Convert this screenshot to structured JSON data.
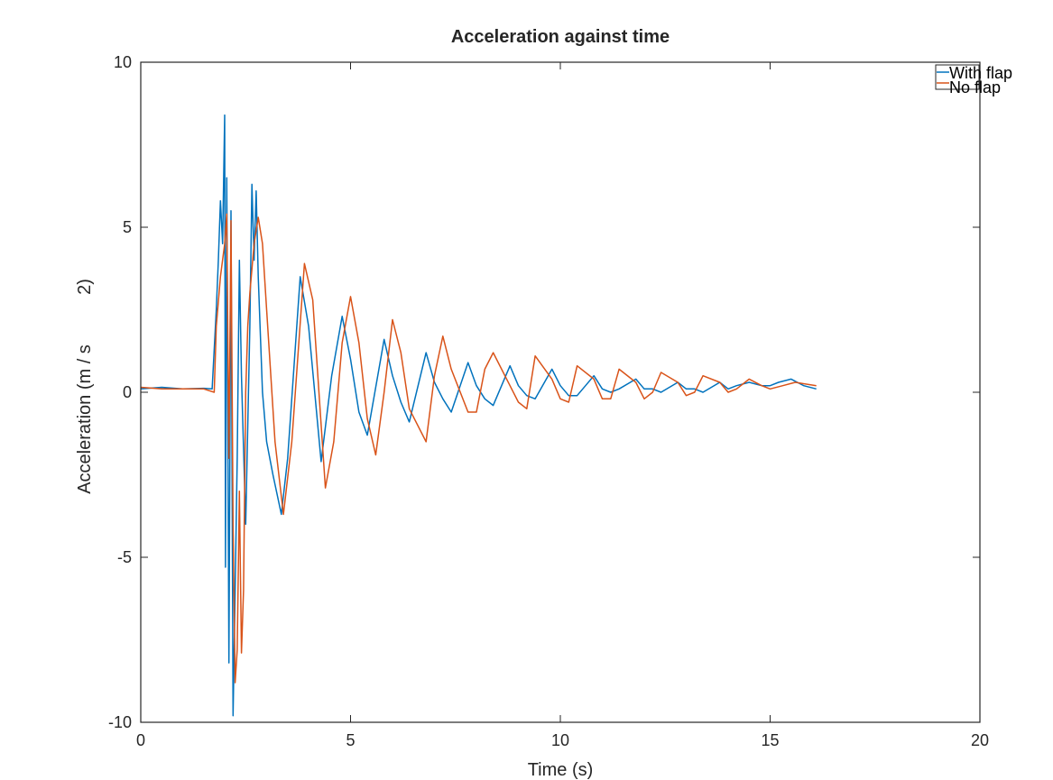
{
  "chart_data": {
    "type": "line",
    "title": "Acceleration against time",
    "xlabel": "Time (s)",
    "ylabel": "Acceleration (m / s",
    "ylabel_sup": "2)",
    "xlim": [
      0,
      20
    ],
    "ylim": [
      -10,
      10
    ],
    "xticks": [
      0,
      5,
      10,
      15,
      20
    ],
    "yticks": [
      -10,
      -5,
      0,
      5,
      10
    ],
    "xtick_labels": [
      "0",
      "5",
      "10",
      "15",
      "20"
    ],
    "ytick_labels": [
      "-10",
      "-5",
      "0",
      "5",
      "10"
    ],
    "grid": false,
    "legend_position": "top-right",
    "series": [
      {
        "name": "With flap",
        "color": "#0072BD",
        "x": [
          0.0,
          0.5,
          1.0,
          1.5,
          1.7,
          1.8,
          1.85,
          1.9,
          1.95,
          2.0,
          2.02,
          2.05,
          2.1,
          2.15,
          2.2,
          2.25,
          2.3,
          2.35,
          2.4,
          2.5,
          2.6,
          2.65,
          2.7,
          2.75,
          2.8,
          2.9,
          3.0,
          3.15,
          3.35,
          3.5,
          3.8,
          4.0,
          4.3,
          4.55,
          4.8,
          5.0,
          5.2,
          5.4,
          5.8,
          6.0,
          6.2,
          6.4,
          6.8,
          7.0,
          7.2,
          7.4,
          7.8,
          8.0,
          8.2,
          8.4,
          8.8,
          9.0,
          9.2,
          9.4,
          9.8,
          10.0,
          10.2,
          10.4,
          10.8,
          11.0,
          11.2,
          11.4,
          11.8,
          12.0,
          12.2,
          12.4,
          12.8,
          13.0,
          13.2,
          13.4,
          13.8,
          14.0,
          14.2,
          14.5,
          14.8,
          15.0,
          15.2,
          15.5,
          15.8,
          16.1
        ],
        "values": [
          0.1,
          0.15,
          0.1,
          0.12,
          0.1,
          2.5,
          4.0,
          5.8,
          4.5,
          8.4,
          -5.3,
          6.5,
          -8.2,
          5.5,
          -9.8,
          -6.0,
          -2.0,
          4.0,
          0.5,
          -4.0,
          2.0,
          6.3,
          4.0,
          6.1,
          3.5,
          0.0,
          -1.5,
          -2.5,
          -3.7,
          -2.0,
          3.5,
          2.0,
          -2.1,
          0.5,
          2.3,
          1.0,
          -0.6,
          -1.3,
          1.6,
          0.5,
          -0.3,
          -0.9,
          1.2,
          0.3,
          -0.2,
          -0.6,
          0.9,
          0.2,
          -0.2,
          -0.4,
          0.8,
          0.2,
          -0.1,
          -0.2,
          0.7,
          0.2,
          -0.1,
          -0.1,
          0.5,
          0.1,
          0.0,
          0.1,
          0.4,
          0.1,
          0.1,
          0.0,
          0.3,
          0.1,
          0.1,
          0.0,
          0.3,
          0.1,
          0.2,
          0.3,
          0.2,
          0.2,
          0.3,
          0.4,
          0.2,
          0.1
        ]
      },
      {
        "name": "No flap",
        "color": "#D95319",
        "x": [
          0.0,
          0.5,
          1.0,
          1.5,
          1.75,
          1.8,
          1.9,
          2.0,
          2.05,
          2.1,
          2.15,
          2.2,
          2.25,
          2.3,
          2.35,
          2.4,
          2.45,
          2.5,
          2.55,
          2.6,
          2.7,
          2.8,
          2.9,
          3.0,
          3.2,
          3.4,
          3.6,
          3.9,
          4.1,
          4.4,
          4.6,
          4.8,
          5.0,
          5.2,
          5.4,
          5.6,
          5.8,
          6.0,
          6.2,
          6.4,
          6.8,
          7.0,
          7.2,
          7.4,
          7.8,
          8.0,
          8.2,
          8.4,
          8.8,
          9.0,
          9.2,
          9.4,
          9.8,
          10.0,
          10.2,
          10.4,
          10.8,
          11.0,
          11.2,
          11.4,
          11.8,
          12.0,
          12.2,
          12.4,
          12.8,
          13.0,
          13.2,
          13.4,
          13.8,
          14.0,
          14.2,
          14.5,
          14.8,
          15.0,
          15.3,
          15.6,
          16.1
        ],
        "values": [
          0.15,
          0.1,
          0.1,
          0.1,
          0.0,
          2.0,
          3.5,
          4.5,
          5.4,
          -2.0,
          5.2,
          -4.0,
          -8.8,
          -7.8,
          -3.0,
          -7.9,
          -6.0,
          0.0,
          2.0,
          3.0,
          4.5,
          5.3,
          4.5,
          2.5,
          -1.5,
          -3.7,
          -1.5,
          3.9,
          2.8,
          -2.9,
          -1.5,
          1.5,
          2.9,
          1.5,
          -0.8,
          -1.9,
          0.0,
          2.2,
          1.2,
          -0.5,
          -1.5,
          0.5,
          1.7,
          0.7,
          -0.6,
          -0.6,
          0.7,
          1.2,
          0.2,
          -0.3,
          -0.5,
          1.1,
          0.4,
          -0.2,
          -0.3,
          0.8,
          0.4,
          -0.2,
          -0.2,
          0.7,
          0.3,
          -0.2,
          0.0,
          0.6,
          0.3,
          -0.1,
          0.0,
          0.5,
          0.3,
          0.0,
          0.1,
          0.4,
          0.2,
          0.1,
          0.2,
          0.3,
          0.2
        ]
      }
    ]
  }
}
